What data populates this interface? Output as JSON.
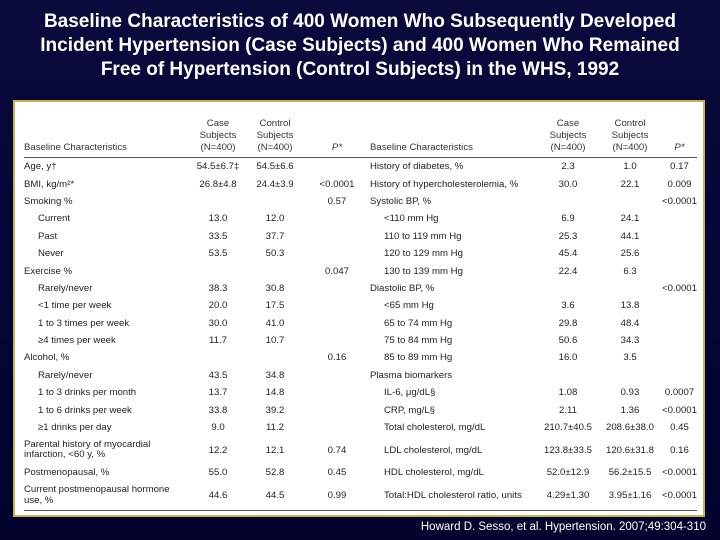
{
  "title": {
    "line1": "Baseline Characteristics of 400 Women Who Subsequently Developed",
    "line2": "Incident Hypertension (Case Subjects) and 400 Women Who Remained",
    "line3": "Free of Hypertension (Control Subjects) in the WHS, 1992"
  },
  "headers": {
    "left_char": "Baseline Characteristics",
    "case_l1": "Case",
    "case_l2": "Subjects",
    "case_l3": "(N=400)",
    "ctrl_l1": "Control",
    "ctrl_l2": "Subjects",
    "ctrl_l3": "(N=400)",
    "p": "P*",
    "right_char": "Baseline Characteristics"
  },
  "rows": [
    {
      "l": "Age, y†",
      "lc": "54.5±6.7‡",
      "lt": "54.5±6.6",
      "lp": "",
      "r": "History of diabetes, %",
      "rc": "2.3",
      "rt": "1.0",
      "rp": "0.17"
    },
    {
      "l": "BMI, kg/m²*",
      "lc": "26.8±4.8",
      "lt": "24.4±3.9",
      "lp": "<0.0001",
      "r": "History of hypercholesterolemia, %",
      "rc": "30.0",
      "rt": "22.1",
      "rp": "0.009"
    },
    {
      "l": "Smoking %",
      "lc": "",
      "lt": "",
      "lp": "0.57",
      "r": "Systolic BP, %",
      "rc": "",
      "rt": "",
      "rp": "<0.0001"
    },
    {
      "l": "Current",
      "lc": "13.0",
      "lt": "12.0",
      "lp": "",
      "r": "<110 mm Hg",
      "rc": "6.9",
      "rt": "24.1",
      "rp": ""
    },
    {
      "l": "Past",
      "lc": "33.5",
      "lt": "37.7",
      "lp": "",
      "r": "110 to 119 mm Hg",
      "rc": "25.3",
      "rt": "44.1",
      "rp": ""
    },
    {
      "l": "Never",
      "lc": "53.5",
      "lt": "50.3",
      "lp": "",
      "r": "120 to 129 mm Hg",
      "rc": "45.4",
      "rt": "25.6",
      "rp": ""
    },
    {
      "l": "Exercise %",
      "lc": "",
      "lt": "",
      "lp": "0.047",
      "r": "130 to 139 mm Hg",
      "rc": "22.4",
      "rt": "6.3",
      "rp": ""
    },
    {
      "l": "Rarely/never",
      "lc": "38.3",
      "lt": "30.8",
      "lp": "",
      "r": "Diastolic BP, %",
      "rc": "",
      "rt": "",
      "rp": "<0.0001"
    },
    {
      "l": "<1 time per week",
      "lc": "20.0",
      "lt": "17.5",
      "lp": "",
      "r": "<65 mm Hg",
      "rc": "3.6",
      "rt": "13.8",
      "rp": ""
    },
    {
      "l": "1 to 3 times per week",
      "lc": "30.0",
      "lt": "41.0",
      "lp": "",
      "r": "65 to 74 mm Hg",
      "rc": "29.8",
      "rt": "48.4",
      "rp": ""
    },
    {
      "l": "≥4 times per week",
      "lc": "11.7",
      "lt": "10.7",
      "lp": "",
      "r": "75 to 84 mm Hg",
      "rc": "50.6",
      "rt": "34.3",
      "rp": ""
    },
    {
      "l": "Alcohol, %",
      "lc": "",
      "lt": "",
      "lp": "0.16",
      "r": "85 to 89 mm Hg",
      "rc": "16.0",
      "rt": "3.5",
      "rp": ""
    },
    {
      "l": "Rarely/never",
      "lc": "43.5",
      "lt": "34.8",
      "lp": "",
      "r": "Plasma biomarkers",
      "rc": "",
      "rt": "",
      "rp": ""
    },
    {
      "l": "1 to 3 drinks per month",
      "lc": "13.7",
      "lt": "14.8",
      "lp": "",
      "r": "IL-6, μg/dL§",
      "rc": "1.08",
      "rt": "0.93",
      "rp": "0.0007"
    },
    {
      "l": "1 to 6 drinks per week",
      "lc": "33.8",
      "lt": "39.2",
      "lp": "",
      "r": "CRP, mg/L§",
      "rc": "2.11",
      "rt": "1.36",
      "rp": "<0.0001"
    },
    {
      "l": "≥1 drinks per day",
      "lc": "9.0",
      "lt": "11.2",
      "lp": "",
      "r": "Total cholesterol, mg/dL",
      "rc": "210.7±40.5",
      "rt": "208.6±38.0",
      "rp": "0.45"
    },
    {
      "l": "Parental history of myocardial infarction, <60 y, %",
      "lc": "12.2",
      "lt": "12.1",
      "lp": "0.74",
      "r": "LDL cholesterol, mg/dL",
      "rc": "123.8±33.5",
      "rt": "120.6±31.8",
      "rp": "0.16"
    },
    {
      "l": "Postmenopausal, %",
      "lc": "55.0",
      "lt": "52.8",
      "lp": "0.45",
      "r": "HDL cholesterol, mg/dL",
      "rc": "52.0±12.9",
      "rt": "56.2±15.5",
      "rp": "<0.0001"
    },
    {
      "l": "Current postmenopausal hormone use, %",
      "lc": "44.6",
      "lt": "44.5",
      "lp": "0.99",
      "r": "Total:HDL cholesterol ratio, units",
      "rc": "4.29±1.30",
      "rt": "3.95±1.16",
      "rp": "<0.0001"
    }
  ],
  "citation": "Howard D. Sesso, et al. Hypertension. 2007;49:304-310"
}
